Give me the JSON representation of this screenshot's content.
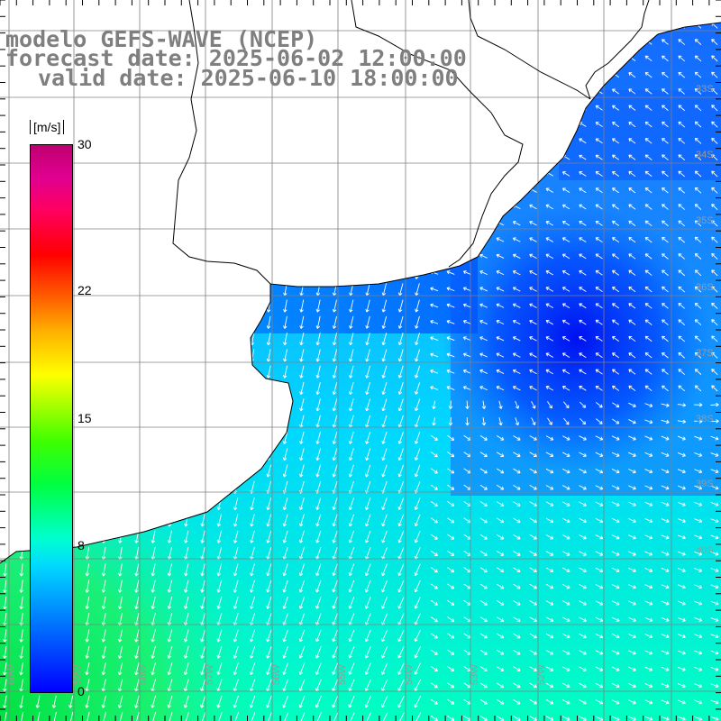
{
  "title": {
    "line1": "modelo GEFS-WAVE (NCEP)",
    "line2": "forecast date: 2025-06-02 12:00:00",
    "line3": "valid date: 2025-06-10 18:00:00"
  },
  "colorbar": {
    "unit": "[m/s]",
    "ticks": [
      "30",
      "22",
      "15",
      "8",
      "0"
    ],
    "tick_values": [
      30,
      22,
      15,
      8,
      0
    ],
    "range": [
      0,
      30
    ],
    "colors": [
      "#0000ff",
      "#00d8ff",
      "#00ff40",
      "#ffff00",
      "#ff0000",
      "#c00070"
    ]
  },
  "map": {
    "lat_labels": [
      "33S",
      "34S",
      "35S",
      "36S",
      "37S",
      "38S",
      "39S",
      "40S"
    ],
    "lon_labels": [
      "60W",
      "59W",
      "58W",
      "57W",
      "56W",
      "55W",
      "54W",
      "53W",
      "52W"
    ],
    "land_color": "#ffffff",
    "grid_color": "#808080"
  }
}
